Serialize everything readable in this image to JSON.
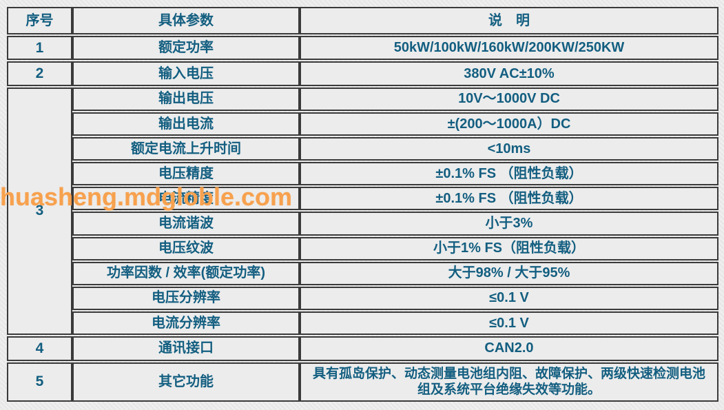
{
  "watermark": {
    "text": "huasheng.mdgloble.com",
    "color": "#f7a14e"
  },
  "colors": {
    "background": "#e9e9e9",
    "cell_fill": "#ececec",
    "grid_border": "#3a3a3a",
    "text": "#135e80"
  },
  "table": {
    "headers": {
      "no": "序号",
      "param": "具体参数",
      "desc": "说　明"
    },
    "rows": [
      {
        "no": "1",
        "param": "额定功率",
        "desc": "50kW/100kW/160kW/200KW/250KW"
      },
      {
        "no": "2",
        "param": "输入电压",
        "desc": "380V AC±10%"
      },
      {
        "no": "3",
        "param": "输出电压",
        "desc": "10V～1000V DC"
      },
      {
        "param": "输出电流",
        "desc": "±(200～1000A）DC"
      },
      {
        "param": "额定电流上升时间",
        "desc": "<10ms"
      },
      {
        "param": "电压精度",
        "desc": "±0.1% FS （阻性负载）"
      },
      {
        "param": "电流精度",
        "desc": "±0.1% FS （阻性负载）"
      },
      {
        "param": "电流谐波",
        "desc": "小于3%"
      },
      {
        "param": "电压纹波",
        "desc": "小于1% FS（阻性负载）"
      },
      {
        "param": "功率因数 / 效率(额定功率)",
        "desc": "大于98% / 大于95%"
      },
      {
        "param": "电压分辨率",
        "desc": "≤0.1 V"
      },
      {
        "param": "电流分辨率",
        "desc": "≤0.1 V"
      },
      {
        "no": "4",
        "param": "通讯接口",
        "desc": "CAN2.0"
      },
      {
        "no": "5",
        "param": "其它功能",
        "desc": "具有孤岛保护、动态测量电池组内阻、故障保护、两级快速检测电池组及系统平台绝缘失效等功能。"
      }
    ]
  }
}
